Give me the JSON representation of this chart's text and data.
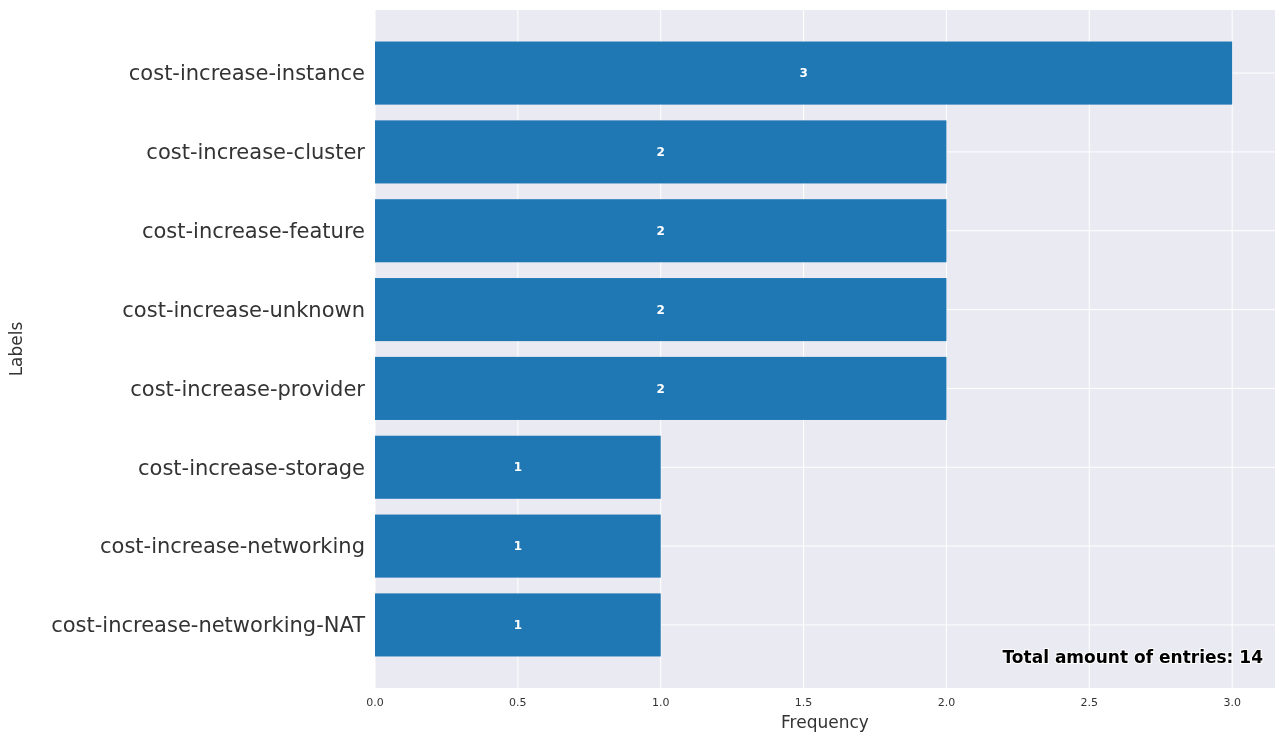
{
  "chart_data": {
    "type": "bar",
    "orientation": "horizontal",
    "xlabel": "Frequency",
    "ylabel": "Labels",
    "categories": [
      "cost-increase-instance",
      "cost-increase-cluster",
      "cost-increase-feature",
      "cost-increase-unknown",
      "cost-increase-provider",
      "cost-increase-storage",
      "cost-increase-networking",
      "cost-increase-networking-NAT"
    ],
    "values": [
      3,
      2,
      2,
      2,
      2,
      1,
      1,
      1
    ],
    "color": "#1f77b4",
    "data_labels": true,
    "xlim": [
      0,
      3.15
    ],
    "xticks": [
      {
        "value": 0,
        "label": "0.0"
      },
      {
        "value": 0.5,
        "label": "0.5"
      },
      {
        "value": 1,
        "label": "1.0"
      },
      {
        "value": 1.5,
        "label": "1.5"
      },
      {
        "value": 2,
        "label": "2.0"
      },
      {
        "value": 2.5,
        "label": "2.5"
      },
      {
        "value": 3,
        "label": "3.0"
      }
    ],
    "grid": true,
    "annotations": [
      "Total amount of entries: 14"
    ]
  }
}
